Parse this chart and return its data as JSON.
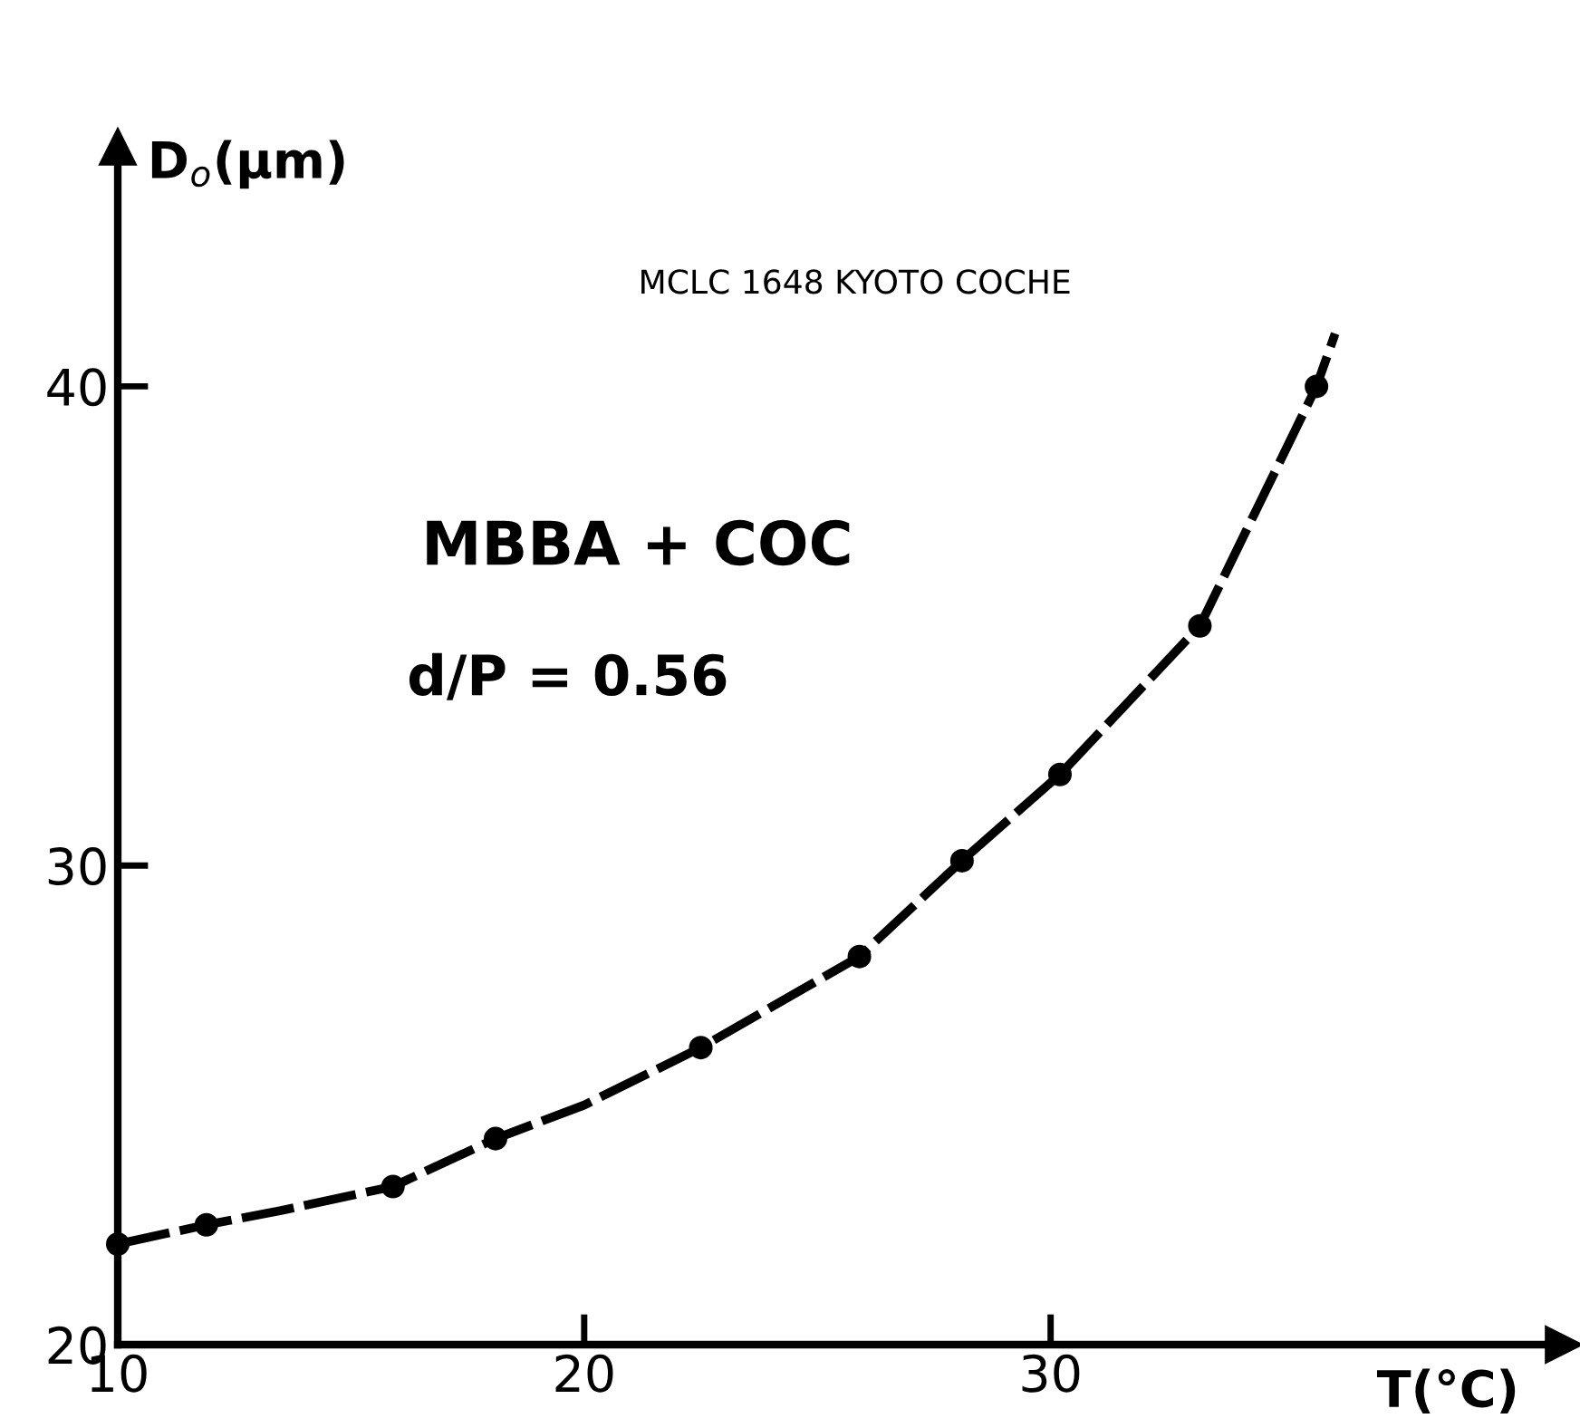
{
  "chart_data": {
    "type": "scatter",
    "xlabel": "T(°C)",
    "ylabel": "D$_{o}$(µm)",
    "annotations": [
      "MCLC 1648 KYOTO COCHE",
      "MBBA + COC",
      "d/P = 0.56"
    ],
    "xlim": [
      10,
      41
    ],
    "ylim": [
      20,
      45
    ],
    "xticks": [
      10,
      20,
      30
    ],
    "yticks": [
      20,
      30,
      40
    ],
    "grid": false,
    "series": [
      {
        "type": "line",
        "color": "#000000",
        "line_style": "dashed",
        "marker": "none",
        "x": [
          10.0,
          11.9,
          13.5,
          15.9,
          18.1,
          20.0,
          22.5,
          25.9,
          28.1,
          30.2,
          33.2,
          35.7,
          36.1
        ],
        "values": [
          22.1,
          22.5,
          22.8,
          23.3,
          24.3,
          25.0,
          26.2,
          28.1,
          30.1,
          31.9,
          35.0,
          40.0,
          41.1
        ]
      },
      {
        "color": "#000000",
        "marker": "circle",
        "x": [
          10.0,
          11.9,
          15.9,
          18.1,
          22.5,
          25.9,
          28.1,
          30.2,
          33.2,
          35.7
        ],
        "values": [
          22.1,
          22.5,
          23.3,
          24.3,
          26.2,
          28.1,
          30.1,
          31.9,
          35.0,
          40.0
        ]
      }
    ]
  }
}
